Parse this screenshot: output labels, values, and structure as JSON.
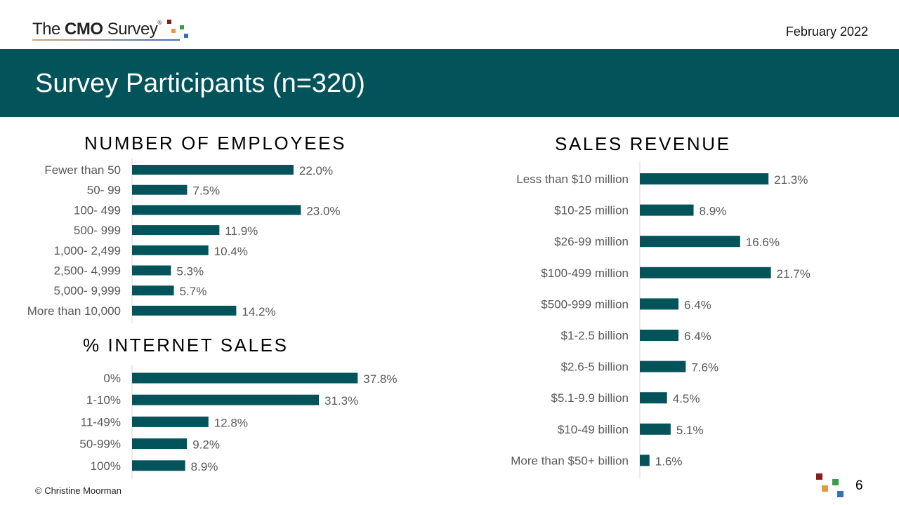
{
  "header": {
    "logo": {
      "pre": "The ",
      "bold": "CMO",
      "post": " Survey",
      "reg": "®"
    },
    "date": "February 2022"
  },
  "banner": {
    "title": "Survey Participants (n=320)"
  },
  "colors": {
    "accent": "#03535a",
    "logo_red": "#8b1c1c",
    "logo_orange": "#e39a3c",
    "logo_green": "#3c9a4b",
    "logo_blue": "#3a6fb7"
  },
  "chart_data": [
    {
      "type": "bar",
      "orientation": "horizontal",
      "title": "NUMBER OF EMPLOYEES",
      "categories": [
        "Fewer than 50",
        "50- 99",
        "100- 499",
        "500- 999",
        "1,000- 2,499",
        "2,500- 4,999",
        "5,000- 9,999",
        "More than 10,000"
      ],
      "values": [
        22.0,
        7.5,
        23.0,
        11.9,
        10.4,
        5.3,
        5.7,
        14.2
      ],
      "labels": [
        "22.0%",
        "7.5%",
        "23.0%",
        "11.9%",
        "10.4%",
        "5.3%",
        "5.7%",
        "14.2%"
      ],
      "unit": "%"
    },
    {
      "type": "bar",
      "orientation": "horizontal",
      "title": "% INTERNET SALES",
      "categories": [
        "0%",
        "1-10%",
        "11-49%",
        "50-99%",
        "100%"
      ],
      "values": [
        37.8,
        31.3,
        12.8,
        9.2,
        8.9
      ],
      "labels": [
        "37.8%",
        "31.3%",
        "12.8%",
        "9.2%",
        "8.9%"
      ],
      "unit": "%"
    },
    {
      "type": "bar",
      "orientation": "horizontal",
      "title": "SALES REVENUE",
      "categories": [
        "Less than $10 million",
        "$10-25 million",
        "$26-99 million",
        "$100-499 million",
        "$500-999 million",
        "$1-2.5 billion",
        "$2.6-5 billion",
        "$5.1-9.9 billion",
        "$10-49 billion",
        "More than $50+ billion"
      ],
      "values": [
        21.3,
        8.9,
        16.6,
        21.7,
        6.4,
        6.4,
        7.6,
        4.5,
        5.1,
        1.6
      ],
      "labels": [
        "21.3%",
        "8.9%",
        "16.6%",
        "21.7%",
        "6.4%",
        "6.4%",
        "7.6%",
        "4.5%",
        "5.1%",
        "1.6%"
      ],
      "unit": "%"
    }
  ],
  "footer": {
    "copyright": "© Christine Moorman",
    "page_number": "6"
  }
}
